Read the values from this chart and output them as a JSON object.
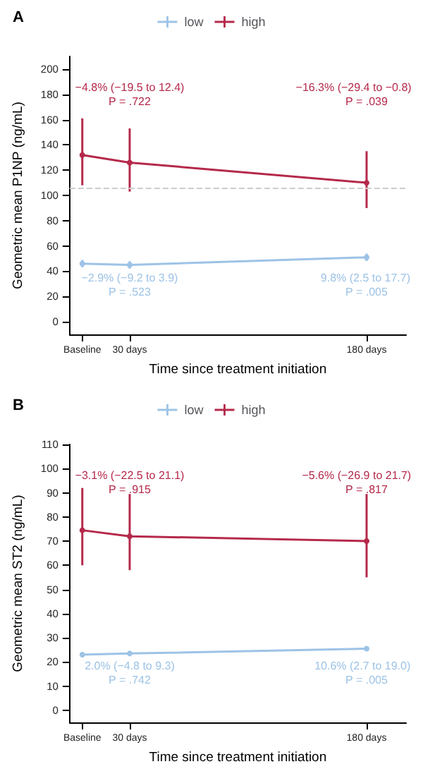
{
  "chart_data": [
    {
      "type": "line",
      "title": "A",
      "xlabel": "Time since treatment initiation",
      "ylabel": "Geometric mean P1NP (ng/mL)",
      "x": [
        0,
        30,
        180
      ],
      "series": [
        {
          "name": "low",
          "color": "#9dc3e6",
          "values": [
            46,
            45,
            51
          ],
          "errors": [
            3,
            3,
            3
          ]
        },
        {
          "name": "high",
          "color": "#b5294b",
          "values": [
            132,
            126,
            110
          ],
          "errors": [
            [
              108,
              161
            ],
            [
              103,
              153
            ],
            [
              90,
              135
            ]
          ]
        }
      ],
      "xlim": [
        -8,
        205
      ],
      "xticks": [
        {
          "value": 0,
          "label": "Baseline"
        },
        {
          "value": 30,
          "label": "30 days"
        },
        {
          "value": 180,
          "label": "180 days"
        }
      ],
      "ylim": [
        -10,
        210
      ],
      "yticks": [
        0,
        20,
        40,
        60,
        80,
        100,
        120,
        140,
        160,
        180,
        200
      ],
      "ref_lines": [
        {
          "axis": "y",
          "value": 106,
          "color": "#cccccc",
          "line_style": "dashed"
        }
      ],
      "annotations": [
        "−4.8% (−19.5 to 12.4)",
        "P = .722",
        "−16.3% (−29.4 to −0.8)",
        "P = .039",
        "−2.9% (−9.2 to 3.9)",
        "P = .523",
        "9.8% (2.5 to 17.7)",
        "P = .005"
      ],
      "legend": "top",
      "grid": false,
      "marker": "circle",
      "line_style": "solid"
    },
    {
      "type": "line",
      "title": "B",
      "xlabel": "Time since treatment initiation",
      "ylabel": "Geometric mean ST2 (ng/mL)",
      "x": [
        0,
        30,
        180
      ],
      "series": [
        {
          "name": "low",
          "color": "#9dc3e6",
          "values": [
            23,
            23.5,
            25.5
          ],
          "errors": [
            1,
            1,
            1
          ]
        },
        {
          "name": "high",
          "color": "#b5294b",
          "values": [
            74.5,
            72,
            70
          ],
          "errors": [
            [
              60,
              92
            ],
            [
              58,
              89.5
            ],
            [
              55,
              89.5
            ]
          ]
        }
      ],
      "xlim": [
        -8,
        205
      ],
      "xticks": [
        {
          "value": 0,
          "label": "Baseline"
        },
        {
          "value": 30,
          "label": "30 days"
        },
        {
          "value": 180,
          "label": "180 days"
        }
      ],
      "ylim": [
        -5,
        110
      ],
      "yticks": [
        0,
        10,
        20,
        30,
        40,
        50,
        60,
        70,
        80,
        90,
        100,
        110
      ],
      "annotations": [
        "−3.1% (−22.5 to 21.1)",
        "P = .915",
        "−5.6% (−26.9 to 21.7)",
        "P = .817",
        "2.0% (−4.8 to 9.3)",
        "P = .742",
        "10.6% (2.7 to 19.0)",
        "P = .005"
      ],
      "legend": "top",
      "grid": false,
      "marker": "circle",
      "line_style": "solid"
    }
  ]
}
